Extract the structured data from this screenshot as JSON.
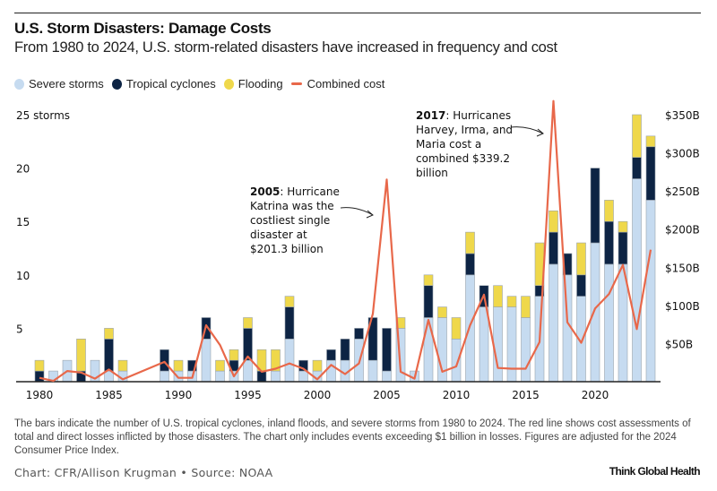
{
  "header": {
    "title": "U.S. Storm Disasters: Damage Costs",
    "subtitle": "From 1980 to 2024, U.S. storm-related disasters have increased in frequency and cost"
  },
  "legend": [
    {
      "label": "Severe storms",
      "color": "#c6dbf0",
      "kind": "dot"
    },
    {
      "label": "Tropical cyclones",
      "color": "#0d2444",
      "kind": "dot"
    },
    {
      "label": "Flooding",
      "color": "#efd84b",
      "kind": "dot"
    },
    {
      "label": "Combined cost",
      "color": "#e8684a",
      "kind": "line"
    }
  ],
  "footer": {
    "note": "The bars indicate the number of U.S. tropical cyclones, inland floods, and severe storms from 1980 to 2024. The red line shows cost assessments of total and direct losses inflicted by those disasters. The chart only includes events exceeding $1 billion in losses. Figures are adjusted for the 2024 Consumer Price Index.",
    "credit": "Chart: CFR/Allison Krugman • Source: NOAA",
    "brand": "Think Global Health"
  },
  "chart_data": {
    "type": "bar",
    "stacked": true,
    "title": "U.S. Storm Disasters: Damage Costs",
    "subtitle": "From 1980 to 2024, U.S. storm-related disasters have increased in frequency and cost",
    "x": [
      1980,
      1981,
      1982,
      1983,
      1984,
      1985,
      1986,
      1987,
      1988,
      1989,
      1990,
      1991,
      1992,
      1993,
      1994,
      1995,
      1996,
      1997,
      1998,
      1999,
      2000,
      2001,
      2002,
      2003,
      2004,
      2005,
      2006,
      2007,
      2008,
      2009,
      2010,
      2011,
      2012,
      2013,
      2014,
      2015,
      2016,
      2017,
      2018,
      2019,
      2020,
      2021,
      2022,
      2023,
      2024
    ],
    "xticks": [
      1980,
      1985,
      1990,
      1995,
      2000,
      2005,
      2010,
      2015,
      2020
    ],
    "series": [
      {
        "name": "Severe storms",
        "color": "#c6dbf0",
        "axis": "left",
        "values": [
          0,
          1,
          2,
          0,
          2,
          1,
          1,
          0,
          0,
          1,
          1,
          1,
          4,
          1,
          1,
          2,
          0,
          1,
          4,
          1,
          1,
          2,
          2,
          4,
          2,
          1,
          5,
          1,
          6,
          6,
          4,
          10,
          7,
          7,
          7,
          6,
          8,
          11,
          10,
          8,
          13,
          11,
          11,
          19,
          17
        ]
      },
      {
        "name": "Tropical cyclones",
        "color": "#0d2444",
        "axis": "left",
        "values": [
          1,
          0,
          0,
          1,
          0,
          3,
          0,
          0,
          0,
          2,
          0,
          1,
          2,
          0,
          1,
          3,
          1,
          0,
          3,
          1,
          0,
          1,
          2,
          1,
          4,
          4,
          0,
          0,
          3,
          0,
          0,
          2,
          2,
          0,
          0,
          0,
          1,
          3,
          2,
          2,
          7,
          4,
          3,
          2,
          5
        ]
      },
      {
        "name": "Flooding",
        "color": "#efd84b",
        "axis": "left",
        "values": [
          1,
          0,
          0,
          3,
          0,
          1,
          1,
          0,
          0,
          0,
          1,
          0,
          0,
          1,
          1,
          1,
          2,
          2,
          1,
          0,
          1,
          0,
          0,
          0,
          0,
          0,
          1,
          0,
          1,
          1,
          2,
          2,
          0,
          2,
          1,
          2,
          4,
          2,
          0,
          3,
          0,
          2,
          1,
          4,
          1
        ]
      },
      {
        "name": "Combined cost",
        "color": "#e8684a",
        "type": "line",
        "axis": "right",
        "unit": "billion USD",
        "values": [
          5,
          1,
          14,
          12,
          4,
          16,
          3,
          null,
          null,
          26,
          5,
          5,
          74,
          48,
          7,
          33,
          13,
          17,
          24,
          17,
          3,
          22,
          10,
          24,
          89,
          265,
          13,
          4,
          81,
          13,
          20,
          74,
          114,
          18,
          17,
          17,
          52,
          368,
          78,
          51,
          96,
          115,
          153,
          69,
          173
        ]
      }
    ],
    "y_left": {
      "label": "25 storms",
      "range": [
        0,
        25
      ],
      "ticks": [
        5,
        10,
        15,
        20,
        25
      ],
      "tick_labels": [
        "5",
        "10",
        "15",
        "20",
        "25 storms"
      ]
    },
    "y_right": {
      "range": [
        0,
        350
      ],
      "ticks": [
        50,
        100,
        150,
        200,
        250,
        300,
        350
      ],
      "tick_labels": [
        "$50B",
        "$100B",
        "$150B",
        "$200B",
        "$250B",
        "$300B",
        "$350B"
      ]
    },
    "grid": false,
    "legend_position": "top-left",
    "annotations": [
      {
        "year": 2005,
        "bold": "2005",
        "lines": [
          ": Hurricane",
          "Katrina was the",
          "costliest single",
          "disaster at",
          "$201.3 billion"
        ]
      },
      {
        "year": 2017,
        "bold": "2017",
        "lines": [
          ": Hurricanes",
          "Harvey, Irma, and",
          "Maria cost a",
          "combined $339.2",
          "billion"
        ]
      }
    ]
  }
}
